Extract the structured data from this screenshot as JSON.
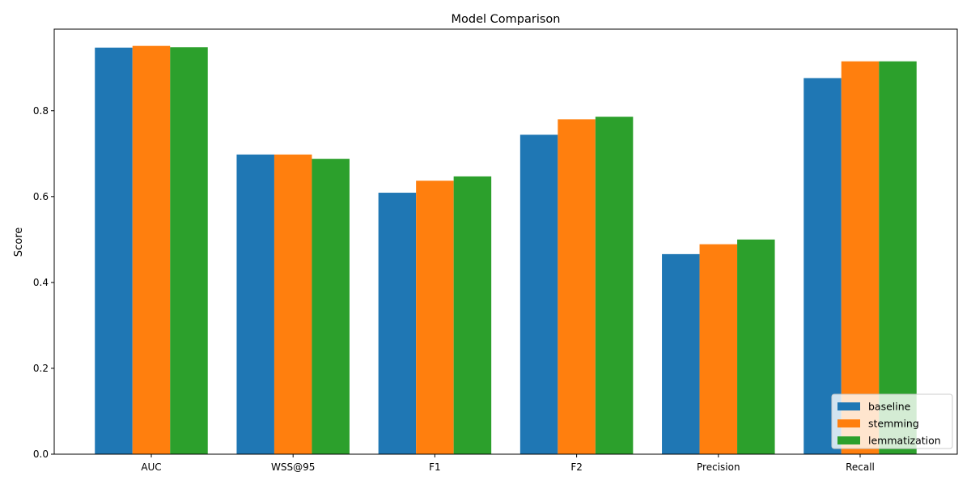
{
  "chart_data": {
    "type": "bar",
    "title": "Model Comparison",
    "xlabel": "",
    "ylabel": "Score",
    "categories": [
      "AUC",
      "WSS@95",
      "F1",
      "F2",
      "Precision",
      "Recall"
    ],
    "series": [
      {
        "name": "baseline",
        "color": "#1f77b4",
        "values": [
          0.947,
          0.698,
          0.609,
          0.744,
          0.466,
          0.876
        ]
      },
      {
        "name": "stemming",
        "color": "#ff7f0e",
        "values": [
          0.951,
          0.698,
          0.637,
          0.78,
          0.489,
          0.915
        ]
      },
      {
        "name": "lemmatization",
        "color": "#2ca02c",
        "values": [
          0.948,
          0.688,
          0.647,
          0.786,
          0.5,
          0.915
        ]
      }
    ],
    "ylim": [
      0,
      0.99
    ],
    "yticks": [
      0.0,
      0.2,
      0.4,
      0.6,
      0.8
    ],
    "ytick_labels": [
      "0.0",
      "0.2",
      "0.4",
      "0.6",
      "0.8"
    ],
    "grid": false,
    "legend_position": "lower-right"
  }
}
